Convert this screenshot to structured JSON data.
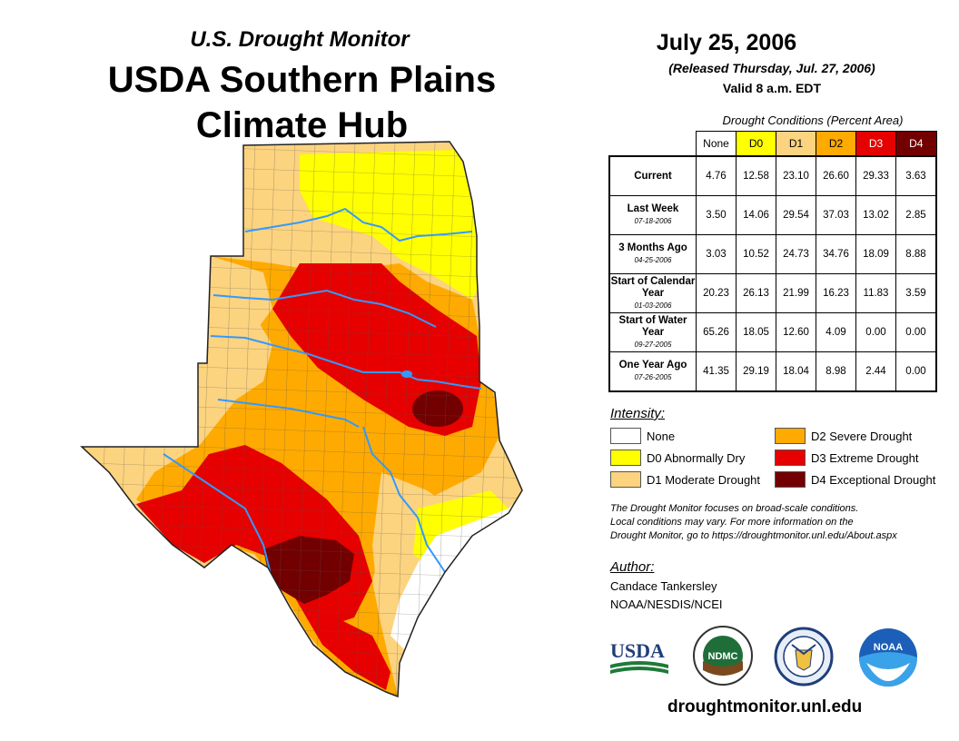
{
  "header": {
    "subtitle": "U.S. Drought Monitor",
    "title_line1": "USDA Southern Plains",
    "title_line2": "Climate Hub"
  },
  "release": {
    "date": "July 25, 2006",
    "released": "(Released Thursday, Jul. 27, 2006)",
    "valid": "Valid 8 a.m. EDT"
  },
  "table": {
    "caption": "Drought Conditions (Percent Area)",
    "columns": [
      "None",
      "D0",
      "D1",
      "D2",
      "D3",
      "D4"
    ],
    "column_colors": [
      "#ffffff",
      "#ffff00",
      "#fcd37f",
      "#ffaa00",
      "#e60000",
      "#730000"
    ],
    "rows": [
      {
        "label": "Current",
        "sublabel": "",
        "values": [
          "4.76",
          "12.58",
          "23.10",
          "26.60",
          "29.33",
          "3.63"
        ]
      },
      {
        "label": "Last Week",
        "sublabel": "07-18-2006",
        "values": [
          "3.50",
          "14.06",
          "29.54",
          "37.03",
          "13.02",
          "2.85"
        ]
      },
      {
        "label": "3 Months Ago",
        "sublabel": "04-25-2006",
        "values": [
          "3.03",
          "10.52",
          "24.73",
          "34.76",
          "18.09",
          "8.88"
        ]
      },
      {
        "label": "Start of Calendar Year",
        "sublabel": "01-03-2006",
        "values": [
          "20.23",
          "26.13",
          "21.99",
          "16.23",
          "11.83",
          "3.59"
        ]
      },
      {
        "label": "Start of Water Year",
        "sublabel": "09-27-2005",
        "values": [
          "65.26",
          "18.05",
          "12.60",
          "4.09",
          "0.00",
          "0.00"
        ]
      },
      {
        "label": "One Year Ago",
        "sublabel": "07-26-2005",
        "values": [
          "41.35",
          "29.19",
          "18.04",
          "8.98",
          "2.44",
          "0.00"
        ]
      }
    ]
  },
  "legend": {
    "title": "Intensity:",
    "items": [
      {
        "label": "None",
        "color": "#ffffff"
      },
      {
        "label": "D0 Abnormally Dry",
        "color": "#ffff00"
      },
      {
        "label": "D1 Moderate Drought",
        "color": "#fcd37f"
      },
      {
        "label": "D2 Severe Drought",
        "color": "#ffaa00"
      },
      {
        "label": "D3 Extreme Drought",
        "color": "#e60000"
      },
      {
        "label": "D4 Exceptional Drought",
        "color": "#730000"
      }
    ]
  },
  "note": {
    "line1": "The Drought Monitor focuses on broad-scale conditions.",
    "line2": "Local conditions may vary. For more information on the",
    "line3": "Drought Monitor, go to https://droughtmonitor.unl.edu/About.aspx"
  },
  "author": {
    "title": "Author:",
    "name": "Candace Tankersley",
    "org": "NOAA/NESDIS/NCEI"
  },
  "logos": {
    "usda": "USDA",
    "ndmc": "NDMC",
    "noaa": "NOAA"
  },
  "website": "droughtmonitor.unl.edu",
  "colors": {
    "river": "#3399ff",
    "county_line": "#555555"
  }
}
